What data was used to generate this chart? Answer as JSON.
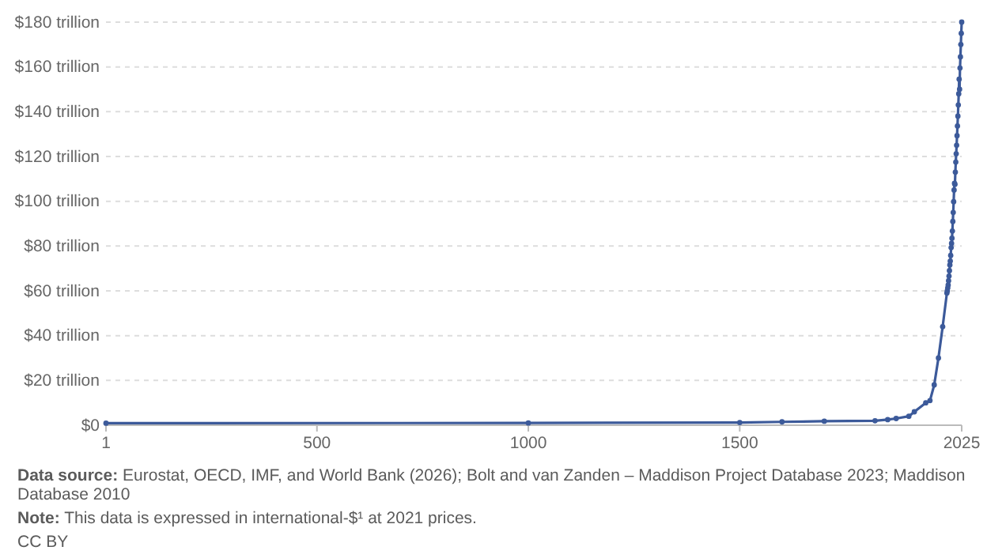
{
  "chart_data": {
    "type": "line",
    "marker": "circle",
    "line_style": "solid",
    "grid": "y",
    "xlim": [
      1,
      2025
    ],
    "xticks": [
      1,
      500,
      1000,
      1500,
      2025
    ],
    "ylim": [
      0,
      180
    ],
    "yticks": [
      {
        "value": 0,
        "label": "$0"
      },
      {
        "value": 20,
        "label": "$20 trillion"
      },
      {
        "value": 40,
        "label": "$40 trillion"
      },
      {
        "value": 60,
        "label": "$60 trillion"
      },
      {
        "value": 80,
        "label": "$80 trillion"
      },
      {
        "value": 100,
        "label": "$100 trillion"
      },
      {
        "value": 120,
        "label": "$120 trillion"
      },
      {
        "value": 140,
        "label": "$140 trillion"
      },
      {
        "value": 160,
        "label": "$160 trillion"
      },
      {
        "value": 180,
        "label": "$180 trillion"
      }
    ],
    "series": [
      {
        "color": "#3c5a9a",
        "x": [
          1,
          1000,
          1500,
          1600,
          1700,
          1820,
          1850,
          1870,
          1900,
          1913,
          1940,
          1950,
          1960,
          1970,
          1980,
          1990,
          1991,
          1992,
          1993,
          1994,
          1995,
          1996,
          1997,
          1998,
          1999,
          2000,
          2001,
          2002,
          2003,
          2004,
          2005,
          2006,
          2007,
          2008,
          2009,
          2010,
          2011,
          2012,
          2013,
          2014,
          2015,
          2016,
          2017,
          2018,
          2019,
          2020,
          2021,
          2022,
          2023,
          2024,
          2025
        ],
        "values": [
          0.9,
          1,
          1.2,
          1.5,
          1.8,
          2,
          2.5,
          3,
          4,
          6,
          10,
          11,
          18,
          30,
          44,
          59,
          60,
          61.3,
          62.6,
          64.5,
          66.6,
          69,
          71.6,
          73.3,
          75.8,
          79.3,
          81.2,
          83.5,
          86.7,
          91,
          95,
          99.8,
          105,
          108,
          107.6,
          113,
          117.5,
          121.2,
          125,
          129.3,
          133.6,
          138,
          143,
          148,
          154.5,
          150,
          159.5,
          164.5,
          170,
          175,
          180
        ]
      }
    ],
    "annotations": [
      "Data source: Eurostat, OECD, IMF, and World Bank (2026); Bolt and van Zanden – Maddison Project Database 2023; Maddison Database 2010",
      "Note: This data is expressed in international-$¹ at 2021 prices.",
      "CC BY"
    ]
  }
}
